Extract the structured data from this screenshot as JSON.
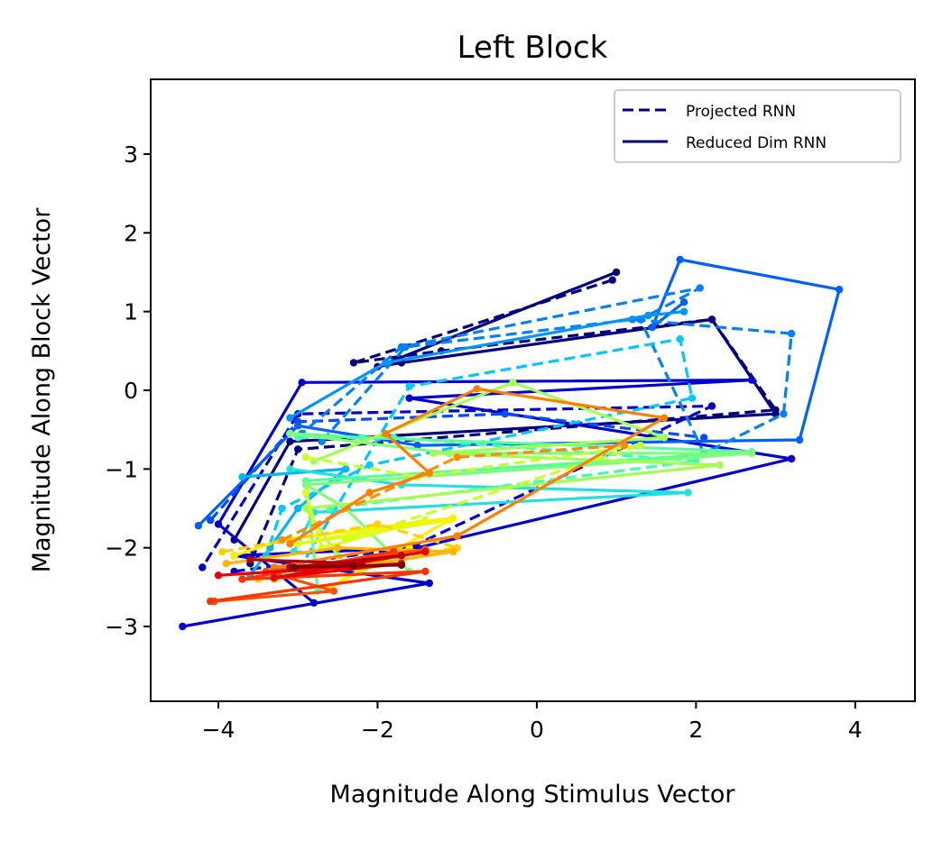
{
  "chart_data": {
    "type": "line",
    "title": "Left Block",
    "xlabel": "Magnitude Along Stimulus Vector",
    "ylabel": "Magnitude Along Block Vector",
    "xlim": [
      -4.85,
      4.75
    ],
    "ylim": [
      -3.95,
      3.95
    ],
    "xticks": [
      -4,
      -2,
      0,
      2,
      4
    ],
    "yticks": [
      -3,
      -2,
      -1,
      0,
      1,
      2,
      3
    ],
    "xtick_labels": [
      "−4",
      "−2",
      "0",
      "2",
      "4"
    ],
    "ytick_labels": [
      "−3",
      "−2",
      "−1",
      "0",
      "1",
      "2",
      "3"
    ],
    "grid": false,
    "legend": {
      "placement": "top-right",
      "entries": [
        {
          "label": "Projected RNN",
          "style": "dashed",
          "color": "#00007f"
        },
        {
          "label": "Reduced Dim RNN",
          "style": "solid",
          "color": "#00007f"
        }
      ]
    },
    "colormap": "jet",
    "series": [
      {
        "style": "dashed",
        "color": "#00007f",
        "x": [
          0.95,
          -2.3,
          -1.2,
          2.2,
          3.0,
          -3.0,
          -3.6
        ],
        "y": [
          1.4,
          0.35,
          0.5,
          0.9,
          -0.25,
          -0.75,
          -2.2
        ]
      },
      {
        "style": "solid",
        "color": "#00007f",
        "x": [
          1.0,
          -2.0,
          -1.7,
          2.2,
          3.0,
          -3.1,
          -3.8
        ],
        "y": [
          1.5,
          0.3,
          0.35,
          0.9,
          -0.3,
          -0.65,
          -1.9
        ]
      },
      {
        "style": "dashed",
        "color": "#0000c8",
        "x": [
          -3.8,
          -1.6,
          2.2,
          -3.0,
          -4.2
        ],
        "y": [
          -2.3,
          -2.0,
          -0.2,
          -0.3,
          -2.25
        ]
      },
      {
        "style": "solid",
        "color": "#0000d0",
        "x": [
          -4.45,
          -1.35,
          -3.8,
          -1.5,
          3.2,
          -1.6,
          2.7,
          -2.95,
          -4.0,
          -2.8
        ],
        "y": [
          -3.0,
          -2.45,
          -2.1,
          -2.0,
          -0.87,
          -0.1,
          0.13,
          0.1,
          -1.7,
          -2.7
        ]
      },
      {
        "style": "dashed",
        "color": "#004cff",
        "x": [
          -4.1,
          -3.0,
          -0.4,
          2.1
        ],
        "y": [
          -1.65,
          -0.4,
          -0.3,
          -0.6
        ]
      },
      {
        "style": "solid",
        "color": "#0060ff",
        "x": [
          -4.25,
          -3.0,
          -1.5,
          3.3,
          3.8,
          1.8,
          1.45,
          1.85
        ],
        "y": [
          -1.72,
          -0.45,
          -0.7,
          -0.63,
          1.28,
          1.66,
          0.8,
          1.12
        ]
      },
      {
        "style": "dashed",
        "color": "#0080ff",
        "x": [
          -2.7,
          -1.65,
          1.2,
          3.2,
          3.1,
          2.1,
          1.3,
          2.05,
          -1.7,
          -2.95
        ],
        "y": [
          -0.65,
          0.55,
          0.9,
          0.72,
          -0.3,
          -0.8,
          0.9,
          1.3,
          0.55,
          -0.55
        ]
      },
      {
        "style": "solid",
        "color": "#0094ff",
        "x": [
          -3.1,
          -1.9,
          1.4,
          1.85
        ],
        "y": [
          -0.35,
          0.35,
          0.95,
          1.0
        ]
      },
      {
        "style": "solid",
        "color": "#00b4ff",
        "x": [
          -3.7,
          -2.4,
          -3.0,
          -3.35,
          -3.6
        ],
        "y": [
          -1.1,
          -1.0,
          -1.5,
          -2.0,
          -2.35
        ]
      },
      {
        "style": "dashed",
        "color": "#00c8ff",
        "x": [
          -3.0,
          -1.6,
          1.8,
          1.95,
          -2.1,
          -3.2,
          -3.4
        ],
        "y": [
          -2.3,
          0.05,
          0.65,
          -0.1,
          -0.95,
          -1.5,
          -2.1
        ]
      },
      {
        "style": "solid",
        "color": "#20e0e0",
        "x": [
          -3.1,
          -1.7,
          1.9,
          -2.8,
          -3.05
        ],
        "y": [
          -1.0,
          -1.2,
          -1.3,
          -1.55,
          -2.05
        ]
      },
      {
        "style": "dashed",
        "color": "#40ffb6",
        "x": [
          -3.0,
          -1.8,
          2.0,
          -2.6
        ],
        "y": [
          -0.6,
          -0.6,
          -0.9,
          -1.5
        ]
      },
      {
        "style": "solid",
        "color": "#58ff9e",
        "x": [
          -3.1,
          -2.2,
          2.7,
          -2.9,
          -2.75
        ],
        "y": [
          -0.55,
          -0.6,
          -0.78,
          -1.15,
          -2.55
        ]
      },
      {
        "style": "solid",
        "color": "#7dff7a",
        "x": [
          -3.1,
          -1.1,
          2.7,
          -2.9,
          -2.4,
          -1.6
        ],
        "y": [
          -0.55,
          -0.8,
          -0.8,
          -1.2,
          -1.5,
          -2.3
        ]
      },
      {
        "style": "solid",
        "color": "#a4ff53",
        "x": [
          -2.8,
          -0.3,
          1.6,
          -1.3,
          2.3,
          -2.9,
          -2.5
        ],
        "y": [
          -0.9,
          0.1,
          -0.6,
          -0.8,
          -0.95,
          -1.5,
          -2.1
        ]
      },
      {
        "style": "dashed",
        "color": "#c7ff30",
        "x": [
          -2.9,
          -1.5,
          1.3,
          -2.4
        ],
        "y": [
          -0.85,
          -1.1,
          -0.7,
          -1.9
        ]
      },
      {
        "style": "solid",
        "color": "#e0ff18",
        "x": [
          -2.9,
          -2.7,
          -1.4,
          -3.0,
          -1.1
        ],
        "y": [
          -1.3,
          -2.0,
          -1.65,
          -1.95,
          -1.65
        ]
      },
      {
        "style": "solid",
        "color": "#fff000",
        "x": [
          -3.8,
          -3.2,
          -1.05,
          -2.6,
          -1.6
        ],
        "y": [
          -2.1,
          -1.9,
          -1.62,
          -2.5,
          -2.0
        ]
      },
      {
        "style": "dashed",
        "color": "#ffd000",
        "x": [
          -3.95,
          -2.0,
          -1.0,
          -3.5
        ],
        "y": [
          -2.05,
          -1.7,
          -2.0,
          -2.4
        ]
      },
      {
        "style": "solid",
        "color": "#ffb600",
        "x": [
          -3.9,
          -2.5,
          -1.05,
          -3.3,
          -1.6
        ],
        "y": [
          -2.2,
          -2.0,
          -2.05,
          -2.4,
          -2.05
        ]
      },
      {
        "style": "dashed",
        "color": "#ff8c00",
        "x": [
          -3.2,
          -1.0,
          1.1
        ],
        "y": [
          -1.9,
          -0.85,
          -0.7
        ]
      },
      {
        "style": "solid",
        "color": "#ff8000",
        "x": [
          -3.1,
          -2.1,
          -1.35,
          -1.9,
          -0.75,
          1.6,
          -1.0,
          -3.3
        ],
        "y": [
          -1.95,
          -1.3,
          -1.05,
          -0.55,
          0.02,
          -0.35,
          -1.85,
          -2.25
        ]
      },
      {
        "style": "solid",
        "color": "#ff5000",
        "x": [
          -4.05,
          -2.55,
          -3.4,
          -1.4
        ],
        "y": [
          -2.68,
          -2.55,
          -2.3,
          -2.02
        ]
      },
      {
        "style": "solid",
        "color": "#ff3400",
        "x": [
          -4.1,
          -1.4,
          -3.7,
          -1.8
        ],
        "y": [
          -2.68,
          -2.3,
          -2.4,
          -2.05
        ]
      },
      {
        "style": "solid",
        "color": "#e80000",
        "x": [
          -4.0,
          -1.7,
          -3.3,
          -1.4
        ],
        "y": [
          -2.35,
          -2.2,
          -2.38,
          -2.05
        ]
      },
      {
        "style": "solid",
        "color": "#b40000",
        "x": [
          -3.6,
          -2.2,
          -3.1,
          -1.7
        ],
        "y": [
          -2.15,
          -2.2,
          -2.25,
          -2.1
        ]
      },
      {
        "style": "solid",
        "color": "#7f0000",
        "x": [
          -3.05,
          -2.3,
          -1.7
        ],
        "y": [
          -2.25,
          -2.23,
          -2.22
        ]
      }
    ]
  }
}
